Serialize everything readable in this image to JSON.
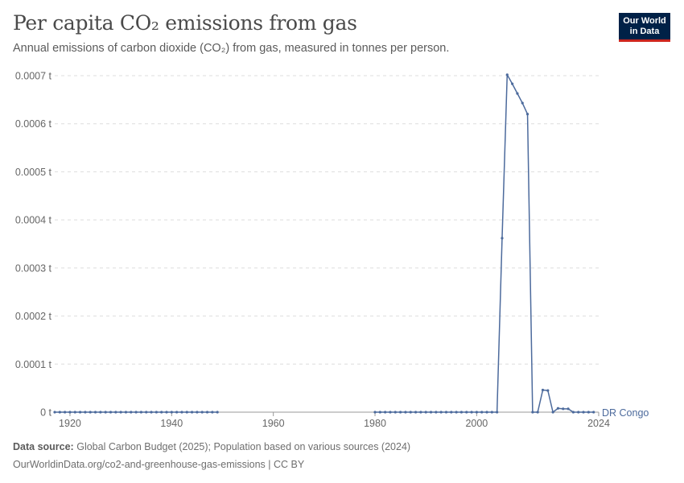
{
  "header": {
    "title": "Per capita CO₂ emissions from gas",
    "subtitle": "Annual emissions of carbon dioxide (CO₂) from gas, measured in tonnes per person.",
    "logo_line1": "Our World",
    "logo_line2": "in Data"
  },
  "footer": {
    "source_label": "Data source:",
    "source_text": "Global Carbon Budget (2025); Population based on various sources (2024)",
    "url_line": "OurWorldinData.org/co2-and-greenhouse-gas-emissions | CC BY"
  },
  "colors": {
    "series": "#4c6a9c",
    "grid": "#dddddd",
    "axis": "#5b5b5b"
  },
  "chart_data": {
    "type": "line",
    "title": "Per capita CO₂ emissions from gas",
    "xlabel": "",
    "ylabel": "",
    "xlim": [
      1917,
      2024
    ],
    "ylim": [
      0,
      0.0007
    ],
    "x_ticks": [
      1920,
      1940,
      1960,
      1980,
      2000,
      2024
    ],
    "y_ticks": [
      {
        "value": 0,
        "label": "0 t"
      },
      {
        "value": 0.0001,
        "label": "0.0001 t"
      },
      {
        "value": 0.0002,
        "label": "0.0002 t"
      },
      {
        "value": 0.0003,
        "label": "0.0003 t"
      },
      {
        "value": 0.0004,
        "label": "0.0004 t"
      },
      {
        "value": 0.0005,
        "label": "0.0005 t"
      },
      {
        "value": 0.0006,
        "label": "0.0006 t"
      },
      {
        "value": 0.0007,
        "label": "0.0007 t"
      }
    ],
    "grid": true,
    "legend": "right",
    "series": [
      {
        "name": "DR Congo",
        "segments": [
          [
            [
              1917,
              0
            ],
            [
              1918,
              0
            ],
            [
              1919,
              0
            ],
            [
              1920,
              0
            ],
            [
              1921,
              0
            ],
            [
              1922,
              0
            ],
            [
              1923,
              0
            ],
            [
              1924,
              0
            ],
            [
              1925,
              0
            ],
            [
              1926,
              0
            ],
            [
              1927,
              0
            ],
            [
              1928,
              0
            ],
            [
              1929,
              0
            ],
            [
              1930,
              0
            ],
            [
              1931,
              0
            ],
            [
              1932,
              0
            ],
            [
              1933,
              0
            ],
            [
              1934,
              0
            ],
            [
              1935,
              0
            ],
            [
              1936,
              0
            ],
            [
              1937,
              0
            ],
            [
              1938,
              0
            ],
            [
              1939,
              0
            ],
            [
              1940,
              0
            ],
            [
              1941,
              0
            ],
            [
              1942,
              0
            ],
            [
              1943,
              0
            ],
            [
              1944,
              0
            ],
            [
              1945,
              0
            ],
            [
              1946,
              0
            ],
            [
              1947,
              0
            ],
            [
              1948,
              0
            ],
            [
              1949,
              0
            ]
          ],
          [
            [
              1980,
              0
            ],
            [
              1981,
              0
            ],
            [
              1982,
              0
            ],
            [
              1983,
              0
            ],
            [
              1984,
              0
            ],
            [
              1985,
              0
            ],
            [
              1986,
              0
            ],
            [
              1987,
              0
            ],
            [
              1988,
              0
            ],
            [
              1989,
              0
            ],
            [
              1990,
              0
            ],
            [
              1991,
              0
            ],
            [
              1992,
              0
            ],
            [
              1993,
              0
            ],
            [
              1994,
              0
            ],
            [
              1995,
              0
            ],
            [
              1996,
              0
            ],
            [
              1997,
              0
            ],
            [
              1998,
              0
            ],
            [
              1999,
              0
            ],
            [
              2000,
              0
            ],
            [
              2001,
              0
            ],
            [
              2002,
              0
            ],
            [
              2003,
              0
            ],
            [
              2004,
              0
            ],
            [
              2005,
              0.000362
            ],
            [
              2006,
              0.000702
            ],
            [
              2007,
              0.000683
            ],
            [
              2008,
              0.000663
            ],
            [
              2009,
              0.000643
            ],
            [
              2010,
              0.00062
            ],
            [
              2011,
              0
            ],
            [
              2012,
              0
            ],
            [
              2013,
              4.6e-05
            ],
            [
              2014,
              4.5e-05
            ],
            [
              2015,
              0
            ],
            [
              2016,
              8e-06
            ],
            [
              2017,
              7e-06
            ],
            [
              2018,
              7e-06
            ],
            [
              2019,
              0
            ],
            [
              2020,
              0
            ],
            [
              2021,
              0
            ],
            [
              2022,
              0
            ],
            [
              2023,
              0
            ]
          ]
        ]
      }
    ]
  }
}
